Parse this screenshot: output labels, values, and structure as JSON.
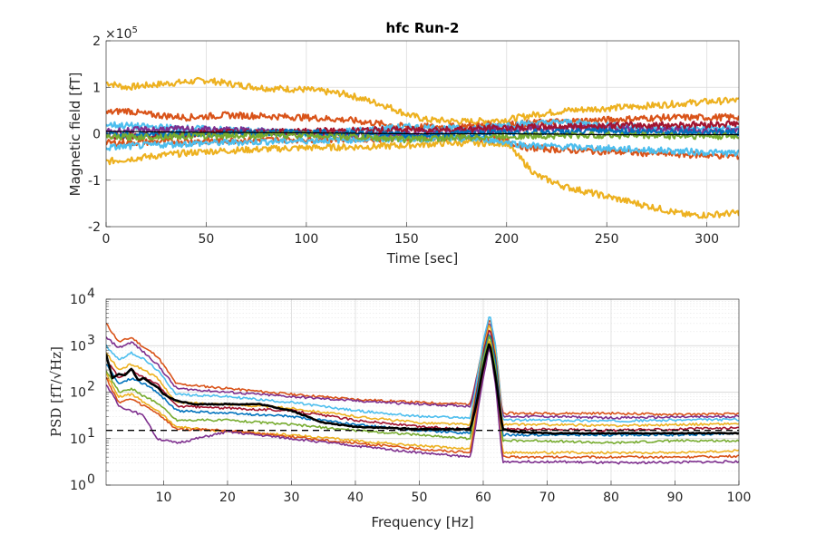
{
  "chart_data": [
    {
      "type": "line",
      "title": "hfc Run-2",
      "xlabel": "Time [sec]",
      "ylabel": "Magnetic field [fT]",
      "exponent_label": "×10",
      "exponent_power": "5",
      "xlim": [
        0,
        316
      ],
      "ylim": [
        -200000,
        200000
      ],
      "xticks": [
        0,
        50,
        100,
        150,
        200,
        250,
        300
      ],
      "yticks": [
        -200000,
        -100000,
        0,
        100000,
        200000
      ],
      "ytick_labels": [
        "-2",
        "-1",
        "0",
        "1",
        "2"
      ],
      "grid": true,
      "series": [
        {
          "color": "#EDB120",
          "x": [
            0,
            10,
            30,
            50,
            66,
            80,
            100,
            120,
            140,
            150,
            160,
            180,
            200,
            215,
            230,
            250,
            270,
            290,
            300,
            316
          ],
          "values": [
            110000,
            100000,
            108000,
            115000,
            105000,
            98000,
            95000,
            85000,
            60000,
            42000,
            30000,
            26000,
            30000,
            42000,
            50000,
            55000,
            60000,
            66000,
            69000,
            72000
          ]
        },
        {
          "color": "#EDB120",
          "x": [
            0,
            10,
            30,
            50,
            80,
            100,
            130,
            150,
            170,
            200,
            205,
            215,
            230,
            250,
            270,
            290,
            300,
            316
          ],
          "values": [
            -60000,
            -55000,
            -45000,
            -38000,
            -33000,
            -30000,
            -28000,
            -25000,
            -20000,
            -20000,
            -45000,
            -90000,
            -115000,
            -135000,
            -155000,
            -175000,
            -175000,
            -170000
          ]
        },
        {
          "color": "#D95319",
          "x": [
            0,
            10,
            20,
            40,
            60,
            80,
            100,
            120,
            140,
            150,
            170,
            190,
            200,
            220,
            250,
            280,
            300,
            316
          ],
          "values": [
            45000,
            50000,
            42000,
            35000,
            40000,
            38000,
            35000,
            30000,
            20000,
            15000,
            15000,
            18000,
            20000,
            25000,
            30000,
            35000,
            35000,
            36000
          ]
        },
        {
          "color": "#D95319",
          "x": [
            0,
            20,
            50,
            100,
            150,
            180,
            200,
            210,
            230,
            260,
            290,
            316
          ],
          "values": [
            -20000,
            -18000,
            -15000,
            -12000,
            -10000,
            -8000,
            -15000,
            -30000,
            -35000,
            -40000,
            -45000,
            -48000
          ]
        },
        {
          "color": "#4DBEEE",
          "x": [
            0,
            20,
            50,
            80,
            100,
            130,
            150,
            180,
            200,
            230,
            260,
            290,
            316
          ],
          "values": [
            20000,
            15000,
            10000,
            5000,
            0,
            8000,
            15000,
            10000,
            20000,
            25000,
            15000,
            10000,
            12000
          ]
        },
        {
          "color": "#4DBEEE",
          "x": [
            0,
            20,
            50,
            100,
            150,
            190,
            210,
            240,
            270,
            300,
            316
          ],
          "values": [
            -30000,
            -25000,
            -20000,
            -15000,
            -10000,
            -12000,
            -25000,
            -30000,
            -35000,
            -40000,
            -42000
          ]
        },
        {
          "color": "#7E2F8E",
          "x": [
            0,
            30,
            60,
            100,
            140,
            170,
            200,
            240,
            280,
            316
          ],
          "values": [
            5000,
            10000,
            8000,
            3000,
            -2000,
            5000,
            10000,
            12000,
            8000,
            5000
          ]
        },
        {
          "color": "#A2142F",
          "x": [
            0,
            30,
            60,
            100,
            140,
            180,
            220,
            260,
            300,
            316
          ],
          "values": [
            -5000,
            -2000,
            3000,
            5000,
            8000,
            10000,
            15000,
            18000,
            20000,
            22000
          ]
        },
        {
          "color": "#0072BD",
          "x": [
            0,
            50,
            100,
            150,
            200,
            250,
            316
          ],
          "values": [
            -2000,
            0,
            3000,
            -3000,
            2000,
            5000,
            3000
          ]
        },
        {
          "color": "#77AC30",
          "x": [
            0,
            50,
            100,
            150,
            200,
            250,
            316
          ],
          "values": [
            -8000,
            -4000,
            -2000,
            -12000,
            -5000,
            -3000,
            -6000
          ]
        },
        {
          "color": "#000000",
          "x": [
            0,
            50,
            100,
            150,
            200,
            250,
            316
          ],
          "values": [
            5000,
            3000,
            2000,
            0,
            0,
            -2000,
            -2000
          ],
          "width": 1.2
        }
      ]
    },
    {
      "type": "line",
      "xlabel": "Frequency [Hz]",
      "ylabel": "PSD [fT/√Hz]",
      "xlim": [
        1,
        100
      ],
      "ylim": [
        1,
        10000
      ],
      "yscale": "log",
      "xticks": [
        10,
        20,
        30,
        40,
        50,
        60,
        70,
        80,
        90,
        100
      ],
      "yticks": [
        1,
        10,
        100,
        1000,
        10000
      ],
      "ytick_mantissa": "10",
      "ytick_powers": [
        "0",
        "1",
        "2",
        "3",
        "4"
      ],
      "grid": true,
      "reference_line": {
        "value": 15,
        "style": "dashed",
        "color": "#000000"
      },
      "series": [
        {
          "color": "#D95319",
          "x": [
            1,
            3,
            5,
            7,
            9,
            12,
            20,
            30,
            40,
            50,
            58,
            60,
            61,
            62,
            63,
            70,
            80,
            90,
            100
          ],
          "values": [
            3000,
            1200,
            1500,
            900,
            600,
            150,
            120,
            90,
            70,
            60,
            55,
            1000,
            4000,
            800,
            35,
            35,
            35,
            33,
            34
          ]
        },
        {
          "color": "#7E2F8E",
          "x": [
            1,
            3,
            5,
            7,
            9,
            12,
            20,
            30,
            40,
            50,
            58,
            60,
            61,
            62,
            63,
            70,
            80,
            90,
            100
          ],
          "values": [
            1500,
            900,
            1200,
            700,
            400,
            120,
            100,
            80,
            65,
            55,
            50,
            900,
            3500,
            700,
            30,
            30,
            28,
            29,
            30
          ]
        },
        {
          "color": "#4DBEEE",
          "x": [
            1,
            3,
            5,
            7,
            9,
            12,
            20,
            30,
            40,
            50,
            58,
            60,
            61,
            62,
            63,
            70,
            80,
            90,
            100
          ],
          "values": [
            1000,
            500,
            700,
            500,
            300,
            90,
            80,
            60,
            40,
            30,
            28,
            1200,
            5000,
            900,
            25,
            25,
            24,
            25,
            26
          ]
        },
        {
          "color": "#EDB120",
          "x": [
            1,
            3,
            5,
            7,
            9,
            12,
            20,
            30,
            40,
            50,
            58,
            60,
            61,
            62,
            63,
            70,
            80,
            90,
            100
          ],
          "values": [
            700,
            300,
            400,
            300,
            200,
            60,
            55,
            45,
            30,
            22,
            20,
            800,
            3000,
            600,
            20,
            20,
            19,
            20,
            21
          ]
        },
        {
          "color": "#A2142F",
          "x": [
            1,
            3,
            5,
            7,
            9,
            12,
            20,
            30,
            40,
            50,
            58,
            60,
            61,
            62,
            63,
            70,
            80,
            90,
            100
          ],
          "values": [
            500,
            200,
            300,
            200,
            150,
            50,
            45,
            40,
            25,
            18,
            16,
            700,
            2500,
            500,
            16,
            16,
            15,
            16,
            17
          ]
        },
        {
          "color": "#0072BD",
          "x": [
            1,
            3,
            5,
            7,
            9,
            12,
            20,
            30,
            40,
            50,
            58,
            60,
            61,
            62,
            63,
            70,
            80,
            90,
            100
          ],
          "values": [
            400,
            150,
            200,
            150,
            100,
            40,
            35,
            30,
            20,
            15,
            13,
            600,
            2000,
            400,
            12,
            12,
            12,
            12,
            13
          ]
        },
        {
          "color": "#77AC30",
          "x": [
            1,
            3,
            5,
            7,
            9,
            12,
            20,
            30,
            40,
            50,
            58,
            60,
            61,
            62,
            63,
            70,
            80,
            90,
            100
          ],
          "values": [
            300,
            100,
            120,
            80,
            60,
            25,
            25,
            20,
            15,
            12,
            10,
            500,
            1800,
            300,
            9,
            9,
            8,
            9,
            9
          ]
        },
        {
          "color": "#EDB120",
          "x": [
            1,
            3,
            5,
            7,
            9,
            12,
            20,
            30,
            40,
            50,
            58,
            60,
            61,
            62,
            63,
            70,
            80,
            90,
            100
          ],
          "values": [
            250,
            80,
            90,
            60,
            40,
            18,
            14,
            12,
            9,
            7,
            6,
            300,
            1500,
            200,
            5,
            5,
            5,
            5,
            5.5
          ]
        },
        {
          "color": "#D95319",
          "x": [
            1,
            3,
            5,
            7,
            9,
            12,
            20,
            30,
            40,
            50,
            58,
            60,
            61,
            62,
            63,
            70,
            80,
            90,
            100
          ],
          "values": [
            200,
            60,
            70,
            50,
            35,
            16,
            15,
            11,
            8,
            6,
            5,
            250,
            1200,
            150,
            4,
            4,
            4,
            4,
            4.2
          ]
        },
        {
          "color": "#7E2F8E",
          "x": [
            1,
            3,
            5,
            7,
            9,
            12,
            20,
            30,
            40,
            50,
            58,
            60,
            61,
            62,
            63,
            70,
            80,
            90,
            100
          ],
          "values": [
            150,
            50,
            40,
            30,
            10,
            8,
            14,
            10,
            7,
            5,
            4,
            200,
            1000,
            120,
            3.2,
            3.2,
            3.0,
            3.1,
            3.2
          ]
        },
        {
          "color": "#000000",
          "width": 2.6,
          "x": [
            1,
            2,
            3,
            4,
            5,
            6,
            7,
            8,
            9,
            10,
            12,
            15,
            20,
            25,
            30,
            35,
            40,
            50,
            58,
            59,
            60,
            61,
            62,
            63,
            65,
            70,
            80,
            90,
            100
          ],
          "values": [
            650,
            200,
            250,
            230,
            320,
            180,
            200,
            150,
            130,
            90,
            65,
            55,
            55,
            55,
            40,
            22,
            18,
            16,
            16,
            60,
            350,
            1200,
            180,
            16,
            14,
            13,
            13,
            13,
            13
          ]
        }
      ]
    }
  ]
}
